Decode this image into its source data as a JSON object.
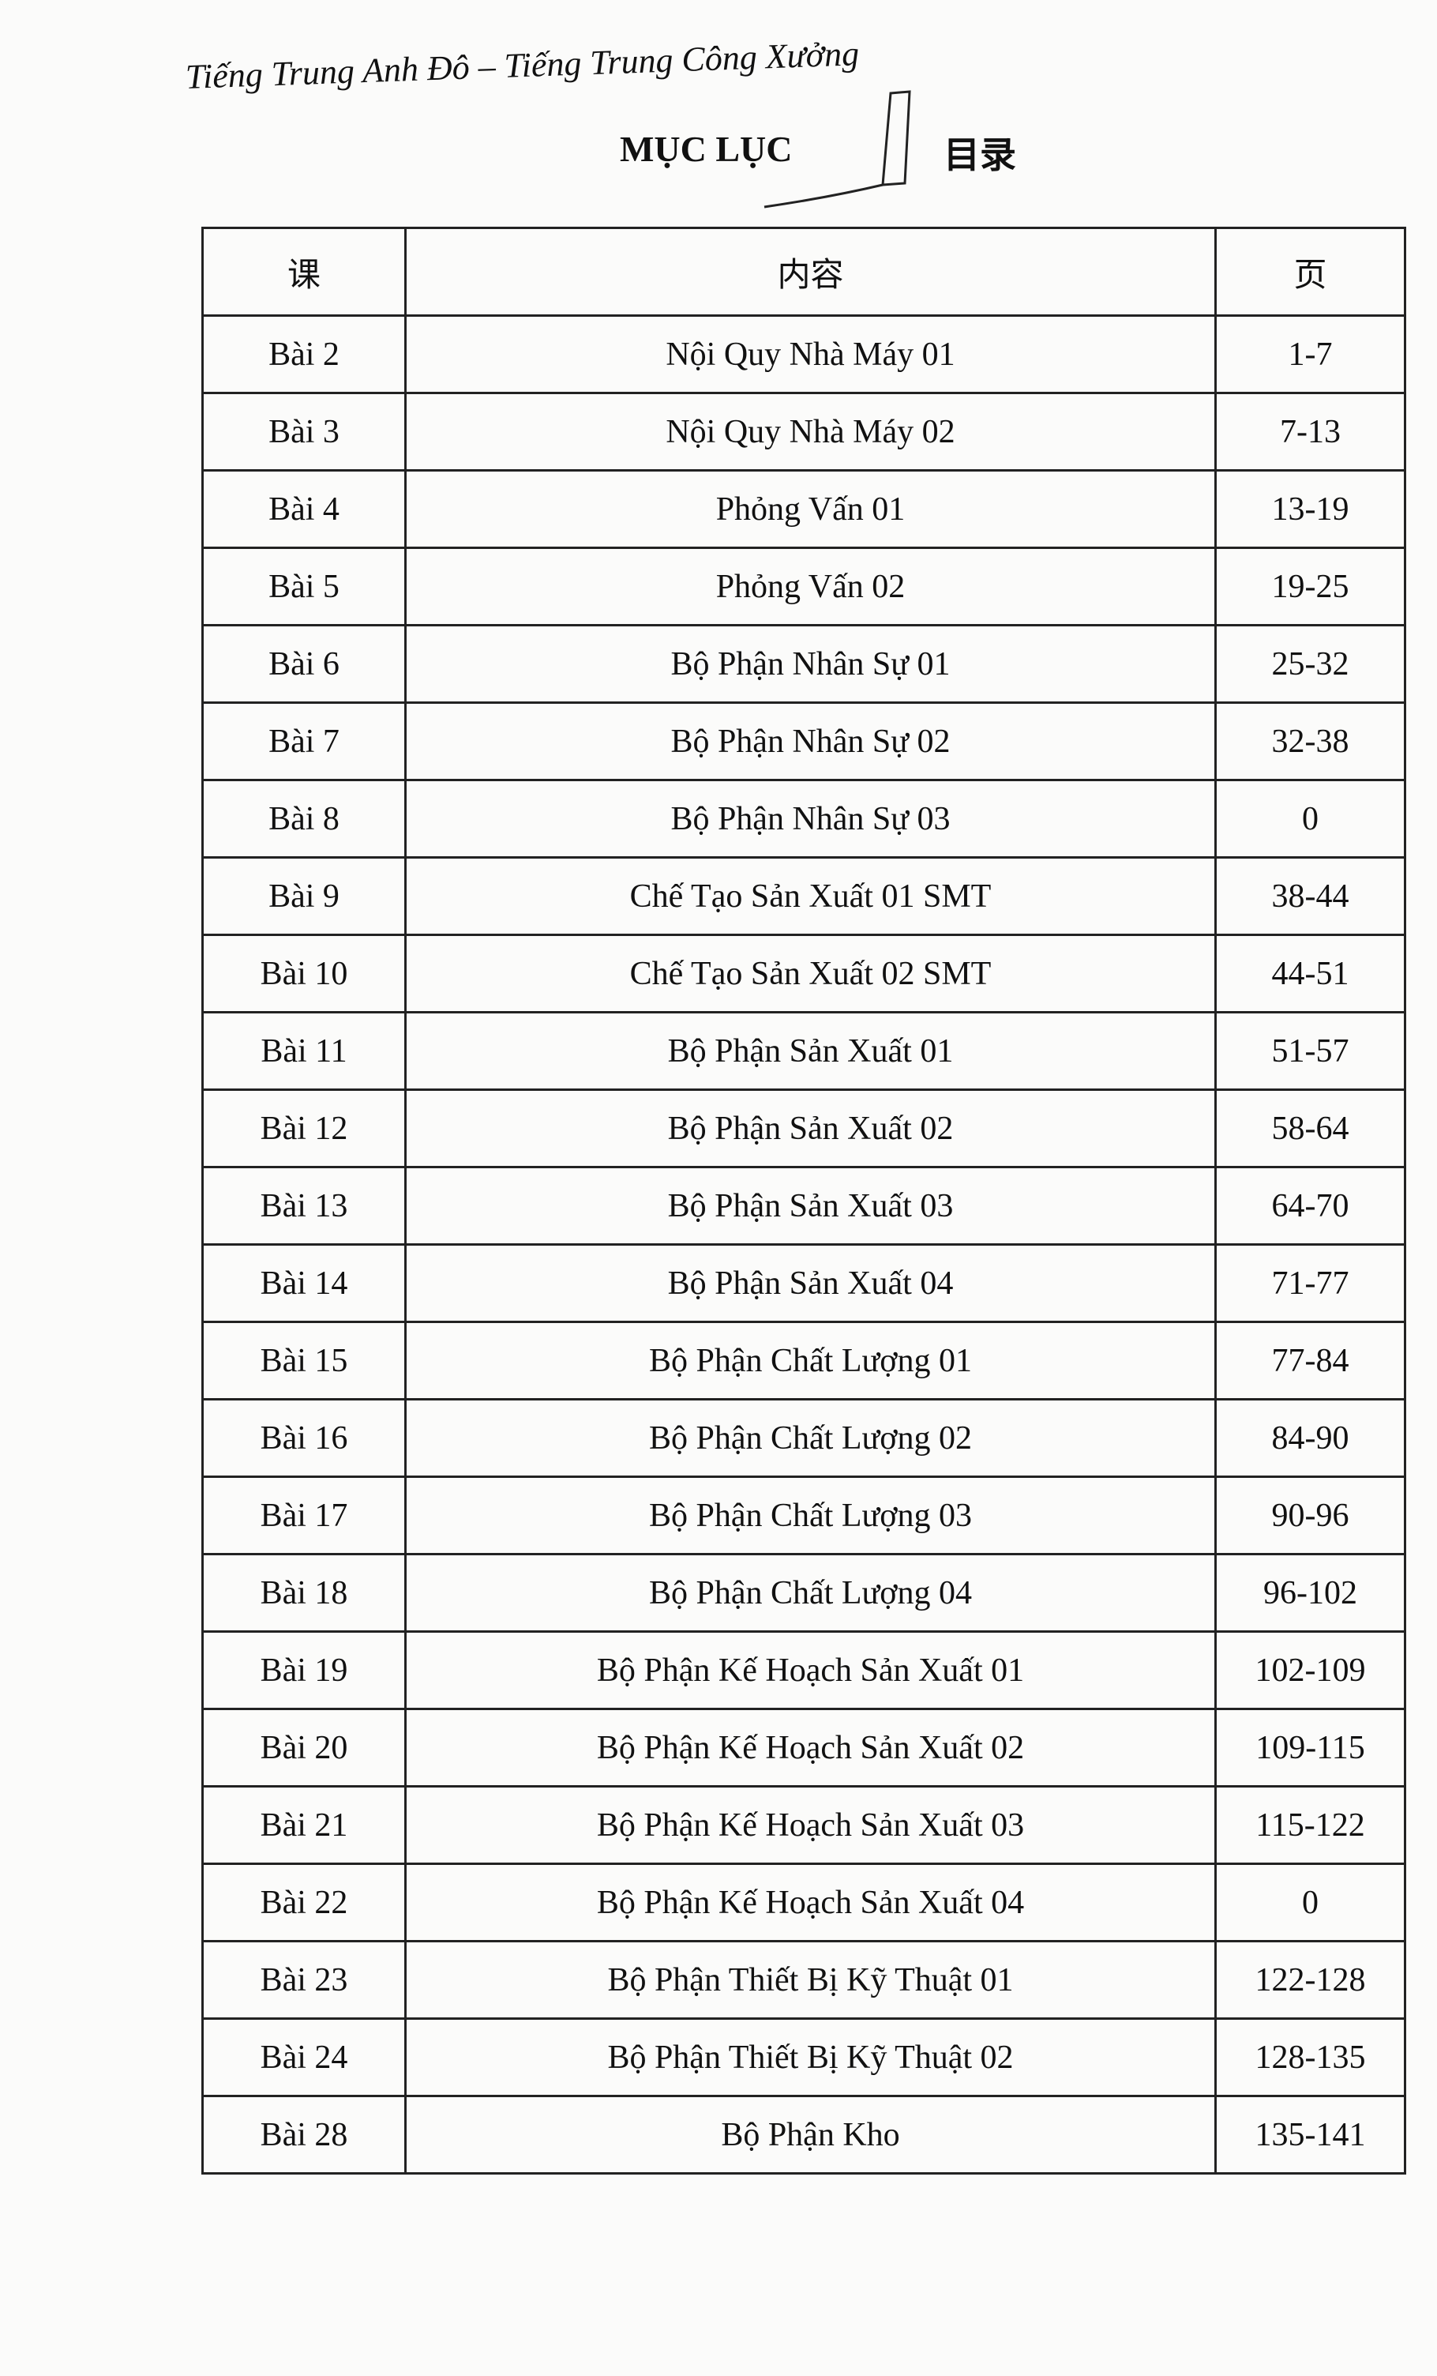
{
  "header": {
    "running_title": "Tiếng Trung Anh Đô – Tiếng Trung Công Xưởng",
    "title": "MỤC LỤC",
    "title_zh": "目录"
  },
  "table": {
    "headers": [
      "课",
      "内容",
      "页"
    ],
    "rows": [
      [
        "Bài 2",
        "Nội Quy Nhà Máy 01",
        "1-7"
      ],
      [
        "Bài 3",
        "Nội Quy Nhà Máy 02",
        "7-13"
      ],
      [
        "Bài 4",
        "Phỏng Vấn 01",
        "13-19"
      ],
      [
        "Bài 5",
        "Phỏng Vấn 02",
        "19-25"
      ],
      [
        "Bài 6",
        "Bộ Phận Nhân Sự 01",
        "25-32"
      ],
      [
        "Bài 7",
        "Bộ Phận Nhân Sự 02",
        "32-38"
      ],
      [
        "Bài 8",
        "Bộ Phận Nhân Sự 03",
        "0"
      ],
      [
        "Bài 9",
        "Chế Tạo Sản Xuất 01 SMT",
        "38-44"
      ],
      [
        "Bài 10",
        "Chế Tạo Sản Xuất 02 SMT",
        "44-51"
      ],
      [
        "Bài 11",
        "Bộ Phận Sản Xuất 01",
        "51-57"
      ],
      [
        "Bài 12",
        "Bộ Phận Sản Xuất 02",
        "58-64"
      ],
      [
        "Bài 13",
        "Bộ Phận Sản Xuất 03",
        "64-70"
      ],
      [
        "Bài 14",
        "Bộ Phận Sản Xuất 04",
        "71-77"
      ],
      [
        "Bài 15",
        "Bộ Phận Chất Lượng 01",
        "77-84"
      ],
      [
        "Bài 16",
        "Bộ Phận Chất Lượng 02",
        "84-90"
      ],
      [
        "Bài 17",
        "Bộ Phận Chất Lượng 03",
        "90-96"
      ],
      [
        "Bài 18",
        "Bộ Phận Chất Lượng 04",
        "96-102"
      ],
      [
        "Bài 19",
        "Bộ Phận Kế Hoạch Sản Xuất 01",
        "102-109"
      ],
      [
        "Bài 20",
        "Bộ Phận Kế Hoạch Sản Xuất 02",
        "109-115"
      ],
      [
        "Bài 21",
        "Bộ Phận Kế Hoạch Sản Xuất 03",
        "115-122"
      ],
      [
        "Bài 22",
        "Bộ Phận Kế Hoạch Sản Xuất 04",
        "0"
      ],
      [
        "Bài 23",
        "Bộ Phận Thiết Bị Kỹ Thuật 01",
        "122-128"
      ],
      [
        "Bài 24",
        "Bộ Phận Thiết Bị Kỹ Thuật 02",
        "128-135"
      ],
      [
        "Bài 28",
        "Bộ Phận Kho",
        "135-141"
      ]
    ]
  }
}
